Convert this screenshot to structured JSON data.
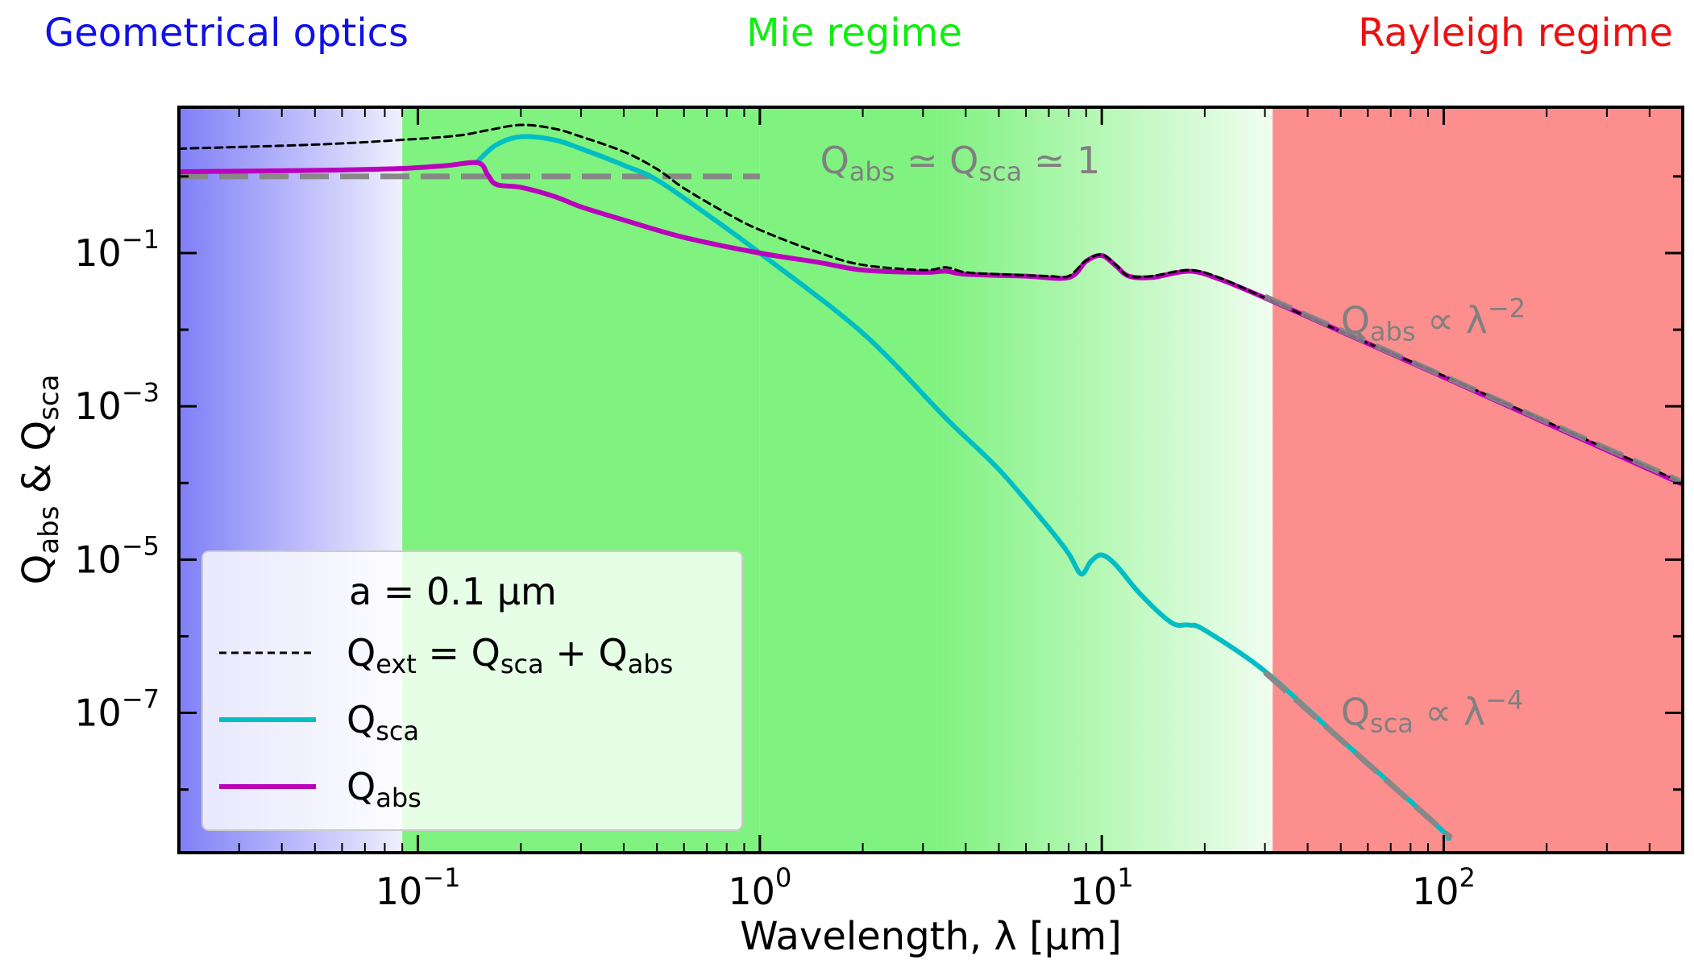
{
  "regimes": {
    "geometrical": {
      "label": "Geometrical optics",
      "color": "#1010e8"
    },
    "mie": {
      "label": "Mie regime",
      "color": "#10ee10"
    },
    "rayleigh": {
      "label": "Rayleigh regime",
      "color": "#ee1010"
    }
  },
  "chart_data": {
    "type": "line",
    "xscale": "log",
    "yscale": "log",
    "xlim": [
      0.02,
      500
    ],
    "ylim": [
      1.5e-09,
      8
    ],
    "xlabel": "Wavelength, λ [μm]",
    "ylabel": {
      "q1": "Q",
      "q1_sub": "abs",
      "amp": " & ",
      "q2": "Q",
      "q2_sub": "sca"
    },
    "x_ticks": [
      {
        "x": 0.1,
        "base": "10",
        "exp": "−1"
      },
      {
        "x": 1,
        "base": "10",
        "exp": "0"
      },
      {
        "x": 10,
        "base": "10",
        "exp": "1"
      },
      {
        "x": 100,
        "base": "10",
        "exp": "2"
      }
    ],
    "y_ticks": [
      {
        "y": 0.1,
        "base": "10",
        "exp": "−1"
      },
      {
        "y": 0.001,
        "base": "10",
        "exp": "−3"
      },
      {
        "y": 1e-05,
        "base": "10",
        "exp": "−5"
      },
      {
        "y": 1e-07,
        "base": "10",
        "exp": "−7"
      }
    ],
    "bands": [
      {
        "regime": "geometrical",
        "x": [
          0.02,
          0.09
        ],
        "color": "#7f7ff7",
        "fade": "to-right"
      },
      {
        "regime": "mie",
        "x": [
          0.09,
          1.0
        ],
        "color": "#80f280",
        "fade": "to-left"
      },
      {
        "regime": "mie",
        "x": [
          1.0,
          3.3
        ],
        "color": "#80f280",
        "fade": "none"
      },
      {
        "regime": "mie",
        "x": [
          3.3,
          31.6
        ],
        "color": "#80f280",
        "fade": "to-right"
      },
      {
        "regime": "rayleigh",
        "x": [
          31.6,
          500
        ],
        "color": "#fc8e8e",
        "fade": "to-left"
      }
    ],
    "series": [
      {
        "key": "qext",
        "color": "#000000",
        "style": "dashed",
        "width": 3,
        "points": [
          [
            0.02,
            2.3
          ],
          [
            0.05,
            2.6
          ],
          [
            0.09,
            3.0
          ],
          [
            0.13,
            3.4
          ],
          [
            0.16,
            4.0
          ],
          [
            0.2,
            4.7
          ],
          [
            0.25,
            4.2
          ],
          [
            0.3,
            3.3
          ],
          [
            0.4,
            2.1
          ],
          [
            0.5,
            1.25
          ],
          [
            0.6,
            0.7
          ],
          [
            0.8,
            0.33
          ],
          [
            1.0,
            0.2
          ],
          [
            1.5,
            0.1
          ],
          [
            2.0,
            0.07
          ],
          [
            3.0,
            0.06
          ],
          [
            3.5,
            0.065
          ],
          [
            4.0,
            0.056
          ],
          [
            5.0,
            0.053
          ],
          [
            7.0,
            0.05
          ],
          [
            8.0,
            0.05
          ],
          [
            9.0,
            0.08
          ],
          [
            10.0,
            0.095
          ],
          [
            11.0,
            0.07
          ],
          [
            12.0,
            0.05
          ],
          [
            14.0,
            0.05
          ],
          [
            18.0,
            0.06
          ],
          [
            22.0,
            0.048
          ],
          [
            30.0,
            0.026
          ],
          [
            50.0,
            0.0095
          ],
          [
            100.0,
            0.0025
          ],
          [
            200.0,
            0.00063
          ],
          [
            500.0,
            0.0001
          ]
        ]
      },
      {
        "key": "qsca",
        "color": "#00bec4",
        "style": "solid",
        "width": 6,
        "points": [
          [
            0.15,
            1.6
          ],
          [
            0.17,
            2.6
          ],
          [
            0.2,
            3.3
          ],
          [
            0.25,
            3.0
          ],
          [
            0.3,
            2.3
          ],
          [
            0.4,
            1.4
          ],
          [
            0.5,
            0.9
          ],
          [
            0.7,
            0.32
          ],
          [
            1.0,
            0.1
          ],
          [
            2.0,
            0.009
          ],
          [
            3.5,
            0.0007
          ],
          [
            5.0,
            0.00015
          ],
          [
            7.0,
            2.6e-05
          ],
          [
            8.0,
            1.2e-05
          ],
          [
            8.7,
            6.5e-06
          ],
          [
            9.3,
            9.5e-06
          ],
          [
            10.0,
            1.15e-05
          ],
          [
            11.0,
            8.5e-06
          ],
          [
            13.0,
            3.5e-06
          ],
          [
            16.0,
            1.5e-06
          ],
          [
            18.0,
            1.4e-06
          ],
          [
            20.0,
            1.2e-06
          ],
          [
            30.0,
            3.5e-07
          ],
          [
            50.0,
            4.5e-08
          ],
          [
            70.0,
            1.2e-08
          ],
          [
            100.0,
            2.8e-09
          ],
          [
            103.0,
            2.3e-09
          ]
        ]
      },
      {
        "key": "qabs",
        "color": "#bb00bb",
        "style": "solid",
        "width": 6,
        "points": [
          [
            0.02,
            1.15
          ],
          [
            0.05,
            1.2
          ],
          [
            0.09,
            1.27
          ],
          [
            0.12,
            1.38
          ],
          [
            0.15,
            1.5
          ],
          [
            0.16,
            1.05
          ],
          [
            0.17,
            0.78
          ],
          [
            0.2,
            0.72
          ],
          [
            0.25,
            0.55
          ],
          [
            0.3,
            0.4
          ],
          [
            0.4,
            0.27
          ],
          [
            0.6,
            0.16
          ],
          [
            1.0,
            0.1
          ],
          [
            1.5,
            0.075
          ],
          [
            2.0,
            0.06
          ],
          [
            3.0,
            0.056
          ],
          [
            3.5,
            0.058
          ],
          [
            4.0,
            0.053
          ],
          [
            6.0,
            0.05
          ],
          [
            8.0,
            0.048
          ],
          [
            9.0,
            0.078
          ],
          [
            10.0,
            0.093
          ],
          [
            11.0,
            0.068
          ],
          [
            12.0,
            0.05
          ],
          [
            14.0,
            0.048
          ],
          [
            18.0,
            0.058
          ],
          [
            22.0,
            0.046
          ],
          [
            30.0,
            0.026
          ],
          [
            50.0,
            0.0095
          ],
          [
            100.0,
            0.0024
          ],
          [
            200.0,
            0.0006
          ],
          [
            500.0,
            9.6e-05
          ]
        ]
      }
    ],
    "asymptotes": [
      {
        "label_key": "unity",
        "points": [
          [
            0.02,
            1.0
          ],
          [
            1.0,
            1.0
          ]
        ],
        "color": "#888888",
        "width": 7,
        "dash": "36 14"
      },
      {
        "label_key": "abs",
        "points": [
          [
            30.0,
            0.027
          ],
          [
            500.0,
            0.000102
          ]
        ],
        "color": "#888888",
        "width": 7,
        "dash": "36 14"
      },
      {
        "label_key": "sca",
        "points": [
          [
            30.0,
            3.4e-07
          ],
          [
            105.0,
            2.35e-09
          ]
        ],
        "color": "#888888",
        "width": 7,
        "dash": "36 14"
      }
    ],
    "annotations": {
      "unity": {
        "x": 1.5,
        "y": 1.1,
        "color": "#808080",
        "p1": "Q",
        "s1": "abs",
        "m1": " ≃ ",
        "p2": "Q",
        "s2": "sca",
        "m2": " ≃ 1"
      },
      "abs": {
        "x": 50,
        "y": 0.009,
        "color": "#808080",
        "p1": "Q",
        "s1": "abs",
        "m1": " ∝ λ",
        "sup": "−2"
      },
      "sca": {
        "x": 50,
        "y": 7e-08,
        "color": "#808080",
        "p1": "Q",
        "s1": "sca",
        "m1": " ∝ λ",
        "sup": "−4"
      }
    },
    "legend": {
      "placement": "lower-left",
      "title": "a = 0.1 μm",
      "entries": [
        {
          "key": "qext",
          "p1": "Q",
          "s1": "ext",
          "m1": " = ",
          "p2": "Q",
          "s2": "sca",
          "m2": " + ",
          "p3": "Q",
          "s3": "abs"
        },
        {
          "key": "qsca",
          "p1": "Q",
          "s1": "sca"
        },
        {
          "key": "qabs",
          "p1": "Q",
          "s1": "abs"
        }
      ]
    }
  }
}
